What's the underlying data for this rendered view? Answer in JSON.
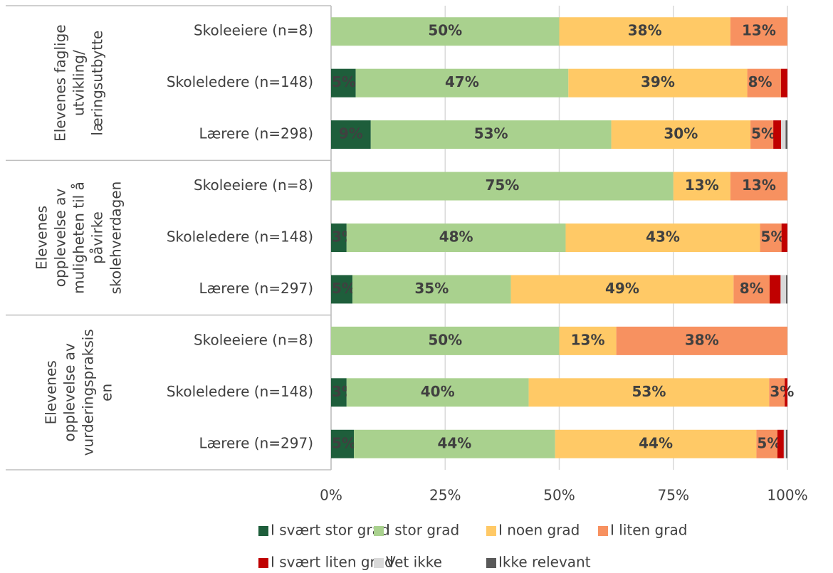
{
  "chart_data": {
    "type": "stacked-bar-horizontal",
    "groups": [
      {
        "lines": [
          "Elevenes faglige",
          "utvikling/",
          "læringsutbytte"
        ]
      },
      {
        "lines": [
          "Elevenes",
          "opplevelse av",
          "muligheten til å",
          "påvirke",
          "skolehverdagen"
        ]
      },
      {
        "lines": [
          "Elevenes",
          "opplevelse av",
          "vurderingspraksis",
          "en"
        ]
      }
    ],
    "categories": [
      "Skoleeiere (n=8)",
      "Skoleledere (n=148)",
      "Lærere (n=298)",
      "Skoleeiere (n=8)",
      "Skoleledere (n=148)",
      "Lærere (n=297)",
      "Skoleeiere (n=8)",
      "Skoleledere (n=148)",
      "Lærere (n=297)"
    ],
    "series": [
      {
        "name": "I svært stor grad",
        "color": "#1e5e3b",
        "text_color": "#ffffff",
        "values": [
          0,
          5.4,
          8.7,
          0,
          3.4,
          4.7,
          0,
          3.4,
          5.0
        ],
        "value_labels": [
          null,
          "5%",
          "9%",
          null,
          "3%",
          "5%",
          null,
          "3%",
          "5%"
        ]
      },
      {
        "name": "I stor grad",
        "color": "#a9d18e",
        "text_color": "#404040",
        "values": [
          50,
          46.6,
          52.7,
          75,
          48.0,
          34.7,
          50,
          39.9,
          44.1
        ],
        "value_labels": [
          "50%",
          "47%",
          "53%",
          "75%",
          "48%",
          "35%",
          "50%",
          "40%",
          "44%"
        ]
      },
      {
        "name": "I noen grad",
        "color": "#ffc966",
        "text_color": "#404040",
        "values": [
          37.5,
          39.2,
          30.5,
          12.5,
          42.6,
          48.8,
          12.5,
          52.7,
          44.1
        ],
        "value_labels": [
          "38%",
          "39%",
          "30%",
          "13%",
          "43%",
          "49%",
          "13%",
          "53%",
          "44%"
        ]
      },
      {
        "name": "I liten grad",
        "color": "#f79160",
        "text_color": "#404040",
        "values": [
          12.5,
          7.4,
          5.0,
          12.5,
          4.7,
          7.9,
          37.5,
          3.4,
          4.6
        ],
        "value_labels": [
          "13%",
          "8%",
          "5%",
          "13%",
          "5%",
          "8%",
          "38%",
          "3%",
          "5%"
        ]
      },
      {
        "name": "I svært liten grad",
        "color": "#c00000",
        "text_color": "#ffffff",
        "values": [
          0,
          1.4,
          1.7,
          0,
          1.3,
          2.4,
          0,
          0.6,
          1.4
        ]
      },
      {
        "name": "Vet ikke",
        "color": "#d9d9d9",
        "text_color": "#404040",
        "values": [
          0,
          0,
          1.0,
          0,
          0,
          1.2,
          0,
          0,
          0.5
        ]
      },
      {
        "name": "Ikke relevant",
        "color": "#595959",
        "text_color": "#ffffff",
        "values": [
          0,
          0,
          0.4,
          0,
          0,
          0.3,
          0,
          0,
          0.3
        ]
      }
    ],
    "xlim": [
      0,
      100
    ],
    "xticks": [
      {
        "value": 0,
        "label": "0%"
      },
      {
        "value": 25,
        "label": "25%"
      },
      {
        "value": 50,
        "label": "50%"
      },
      {
        "value": 75,
        "label": "75%"
      },
      {
        "value": 100,
        "label": "100%"
      }
    ],
    "grid": true,
    "legend": "bottom"
  }
}
